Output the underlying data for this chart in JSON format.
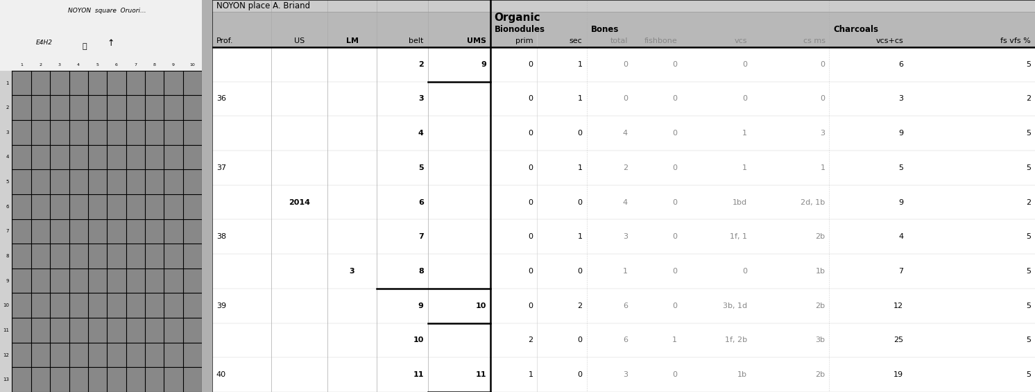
{
  "title": "NOYON place A. Briand",
  "organic_label": "Organic",
  "bionodules_label": "Bionodules",
  "bones_label": "Bones",
  "charcoals_label": "Charcoals",
  "col_headers": [
    "Prof.",
    "US",
    "LM",
    "belt",
    "UMS",
    "prim",
    "sec",
    "total",
    "fishbone",
    "vcs",
    "cs ms",
    "vcs+cs",
    "fs vfs %"
  ],
  "col_bold": [
    false,
    false,
    true,
    false,
    true,
    false,
    false,
    false,
    false,
    false,
    false,
    false,
    false
  ],
  "rows": [
    {
      "prof": "",
      "us": "",
      "lm": "",
      "belt": "2",
      "ums": "9",
      "prim": "0",
      "sec": "1",
      "total": "0",
      "fishbone": "0",
      "vcs": "0",
      "cs_ms": "0",
      "vcs_cs": "6",
      "fs_vfs": "5"
    },
    {
      "prof": "36",
      "us": "",
      "lm": "",
      "belt": "3",
      "ums": "",
      "prim": "0",
      "sec": "1",
      "total": "0",
      "fishbone": "0",
      "vcs": "0",
      "cs_ms": "0",
      "vcs_cs": "3",
      "fs_vfs": "2"
    },
    {
      "prof": "",
      "us": "",
      "lm": "",
      "belt": "4",
      "ums": "",
      "prim": "0",
      "sec": "0",
      "total": "4",
      "fishbone": "0",
      "vcs": "1",
      "cs_ms": "3",
      "vcs_cs": "9",
      "fs_vfs": "5"
    },
    {
      "prof": "37",
      "us": "",
      "lm": "",
      "belt": "5",
      "ums": "",
      "prim": "0",
      "sec": "1",
      "total": "2",
      "fishbone": "0",
      "vcs": "1",
      "cs_ms": "1",
      "vcs_cs": "5",
      "fs_vfs": "5"
    },
    {
      "prof": "",
      "us": "2014",
      "lm": "",
      "belt": "6",
      "ums": "",
      "prim": "0",
      "sec": "0",
      "total": "4",
      "fishbone": "0",
      "vcs": "1bd",
      "cs_ms": "2d, 1b",
      "vcs_cs": "9",
      "fs_vfs": "2"
    },
    {
      "prof": "38",
      "us": "",
      "lm": "",
      "belt": "7",
      "ums": "",
      "prim": "0",
      "sec": "1",
      "total": "3",
      "fishbone": "0",
      "vcs": "1f, 1",
      "cs_ms": "2b",
      "vcs_cs": "4",
      "fs_vfs": "5"
    },
    {
      "prof": "",
      "us": "",
      "lm": "3",
      "belt": "8",
      "ums": "",
      "prim": "0",
      "sec": "0",
      "total": "1",
      "fishbone": "0",
      "vcs": "0",
      "cs_ms": "1b",
      "vcs_cs": "7",
      "fs_vfs": "5"
    },
    {
      "prof": "39",
      "us": "",
      "lm": "",
      "belt": "9",
      "ums": "10",
      "prim": "0",
      "sec": "2",
      "total": "6",
      "fishbone": "0",
      "vcs": "3b, 1d",
      "cs_ms": "2b",
      "vcs_cs": "12",
      "fs_vfs": "5"
    },
    {
      "prof": "",
      "us": "",
      "lm": "",
      "belt": "10",
      "ums": "",
      "prim": "2",
      "sec": "0",
      "total": "6",
      "fishbone": "1",
      "vcs": "1f, 2b",
      "cs_ms": "3b",
      "vcs_cs": "25",
      "fs_vfs": "5"
    },
    {
      "prof": "40",
      "us": "",
      "lm": "",
      "belt": "11",
      "ums": "11",
      "prim": "1",
      "sec": "0",
      "total": "3",
      "fishbone": "0",
      "vcs": "1b",
      "cs_ms": "2b",
      "vcs_cs": "19",
      "fs_vfs": "5"
    }
  ],
  "header_bg": "#b8b8b8",
  "title_bg": "#cccccc",
  "data_bg": "#ffffff",
  "scan_bg": "#909090",
  "scan_label_bg": "#e0e0e0"
}
